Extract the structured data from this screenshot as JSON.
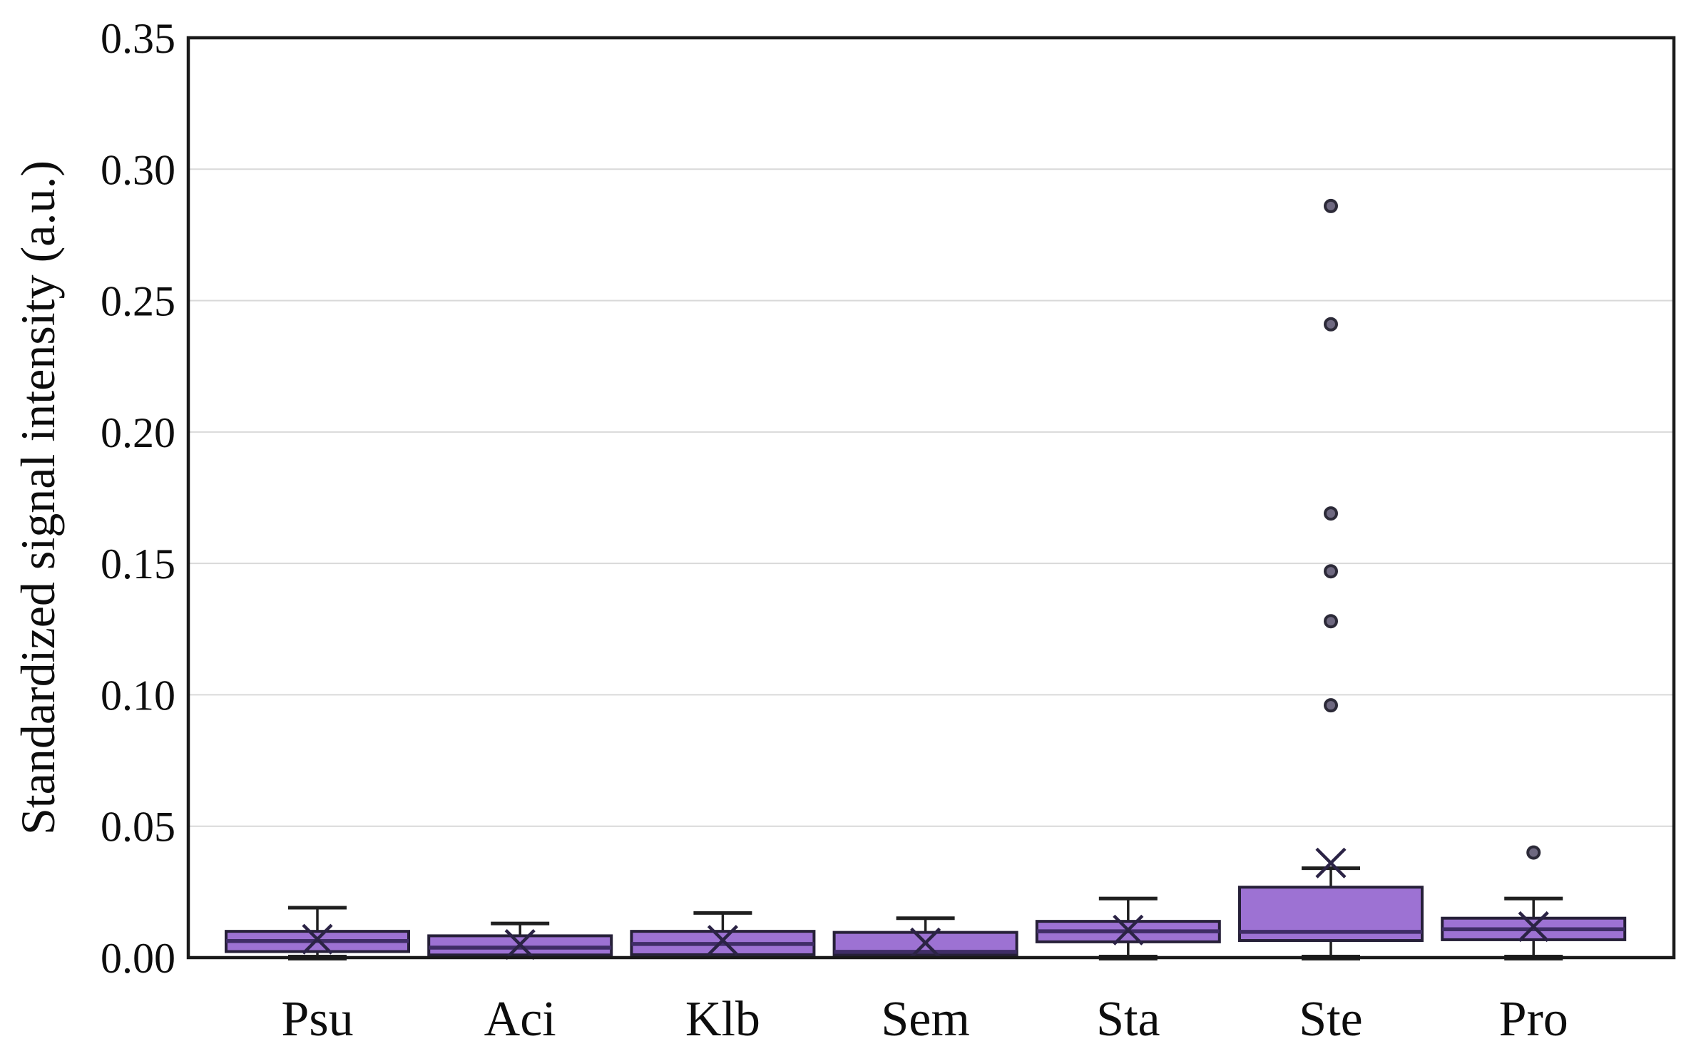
{
  "figure": {
    "background": "#ffffff"
  },
  "chart_data": {
    "type": "boxplot",
    "title": "",
    "xlabel": "",
    "ylabel": "Standardized signal intensity (a.u.)",
    "ylim": [
      0,
      0.35
    ],
    "grid": {
      "horizontal": true,
      "vertical": false
    },
    "legend": "none",
    "yticks": [
      {
        "value": 0.0,
        "label": "0.00"
      },
      {
        "value": 0.05,
        "label": "0.05"
      },
      {
        "value": 0.1,
        "label": "0.10"
      },
      {
        "value": 0.15,
        "label": "0.15"
      },
      {
        "value": 0.2,
        "label": "0.20"
      },
      {
        "value": 0.25,
        "label": "0.25"
      },
      {
        "value": 0.3,
        "label": "0.30"
      },
      {
        "value": 0.35,
        "label": "0.35"
      }
    ],
    "categories": [
      "Psu",
      "Aci",
      "Klb",
      "Sem",
      "Sta",
      "Ste",
      "Pro"
    ],
    "series": [
      {
        "category": "Psu",
        "min": 0.0,
        "q1": 0.0023,
        "median": 0.0063,
        "q3": 0.01,
        "whisker_max": 0.019,
        "mean": 0.007,
        "outliers": []
      },
      {
        "category": "Aci",
        "min": 0.001,
        "q1": 0.001,
        "median": 0.0038,
        "q3": 0.0083,
        "whisker_max": 0.013,
        "mean": 0.005,
        "outliers": []
      },
      {
        "category": "Klb",
        "min": 0.001,
        "q1": 0.0011,
        "median": 0.0052,
        "q3": 0.01,
        "whisker_max": 0.017,
        "mean": 0.0066,
        "outliers": []
      },
      {
        "category": "Sem",
        "min": 0.001,
        "q1": 0.001,
        "median": 0.0022,
        "q3": 0.0096,
        "whisker_max": 0.015,
        "mean": 0.0056,
        "outliers": []
      },
      {
        "category": "Sta",
        "min": 0.0,
        "q1": 0.006,
        "median": 0.01,
        "q3": 0.0138,
        "whisker_max": 0.0225,
        "mean": 0.0105,
        "outliers": []
      },
      {
        "category": "Ste",
        "min": 0.0,
        "q1": 0.0065,
        "median": 0.0098,
        "q3": 0.0268,
        "whisker_max": 0.034,
        "mean": 0.036,
        "outliers": [
          0.286,
          0.241,
          0.169,
          0.147,
          0.128,
          0.096
        ]
      },
      {
        "category": "Pro",
        "min": 0.0,
        "q1": 0.0068,
        "median": 0.0108,
        "q3": 0.015,
        "whisker_max": 0.0225,
        "mean": 0.0118,
        "outliers": [
          0.04
        ]
      }
    ],
    "style": {
      "box_fill": "#9d72d3",
      "box_border": "#262038",
      "median_color": "#3f2d66",
      "whisker_color": "#1f1f1f",
      "mean_marker": "x",
      "mean_color": "#2b2345",
      "outlier_fill": "#6e6880",
      "outlier_stroke": "#2c2a38",
      "frame_color": "#1a1a1a",
      "grid_color": "#d9d9d9",
      "text_color": "#0d0d0d"
    }
  }
}
